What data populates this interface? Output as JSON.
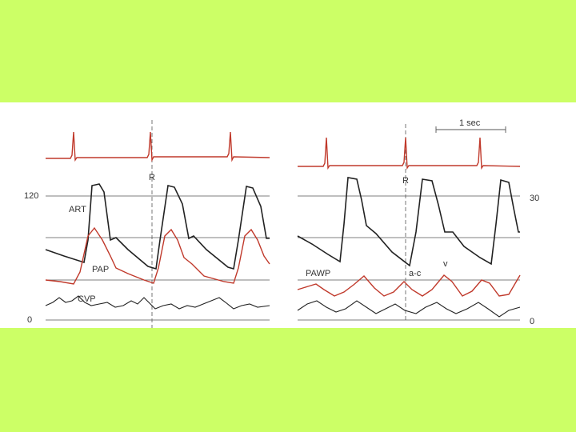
{
  "left_panel": {
    "y_axis_top": "120",
    "y_axis_bottom": "0",
    "r_marker": "R",
    "traces": [
      "ART",
      "PAP",
      "CVP"
    ]
  },
  "right_panel": {
    "scale_bar": "1 sec",
    "y_axis_top": "30",
    "y_axis_bottom": "0",
    "r_marker": "R",
    "traces": [
      "PAWP"
    ],
    "wave_labels": [
      "a-c",
      "v"
    ]
  }
}
